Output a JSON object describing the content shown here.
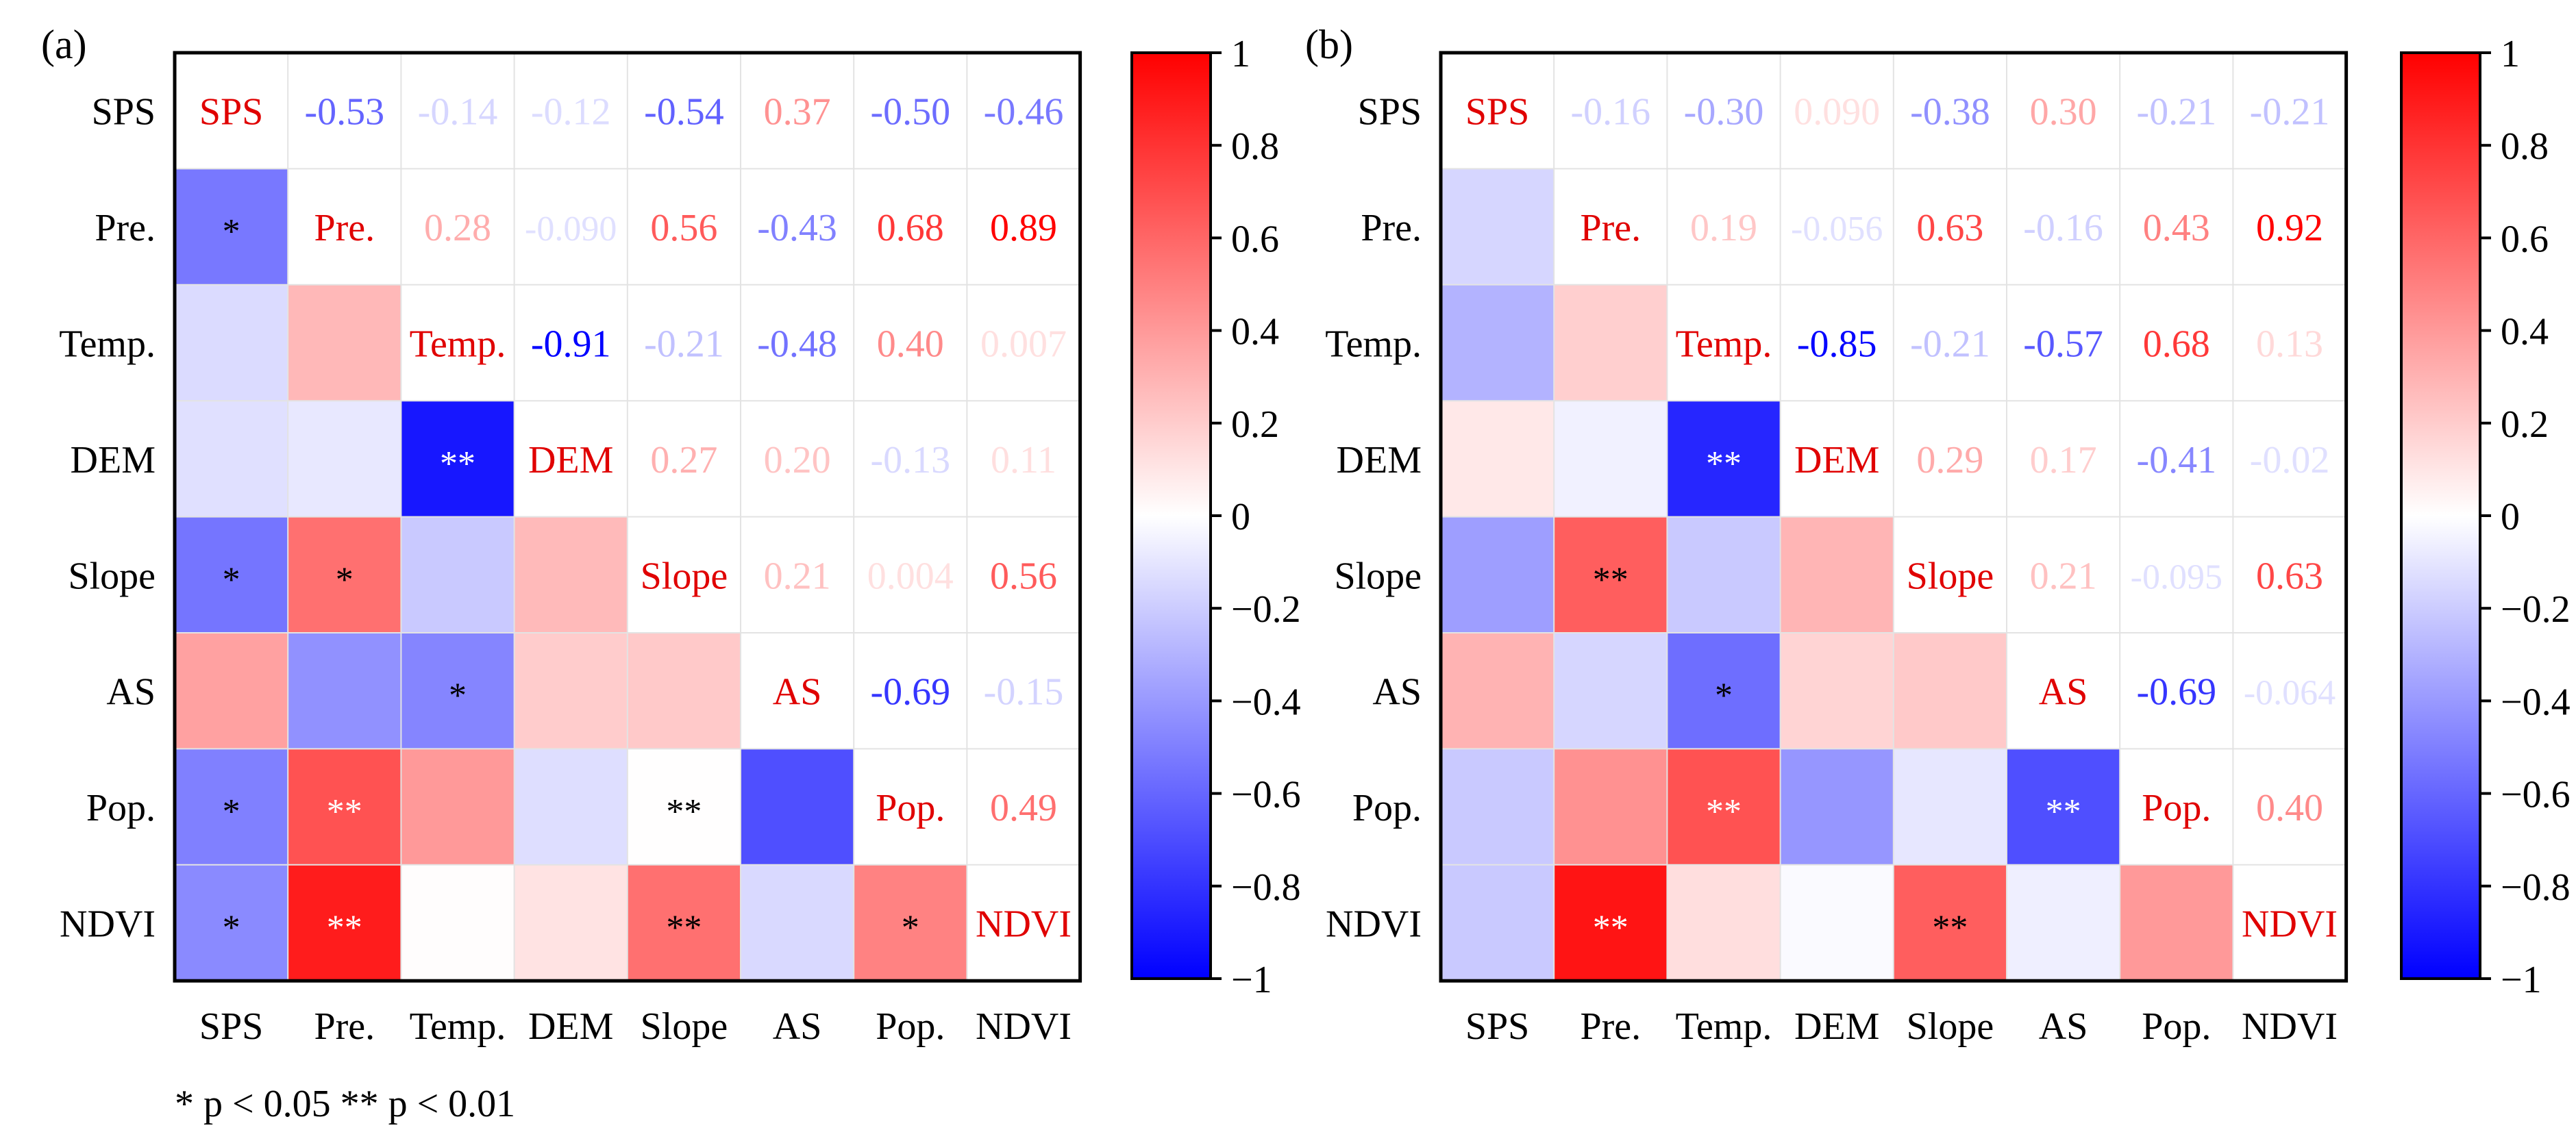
{
  "colors": {
    "negative": "#0000ff",
    "neutral": "#ffffff",
    "positive": "#ff0000",
    "self_label": "#e00000",
    "star_dark": "#000000",
    "star_light": "#ffffff"
  },
  "legend_note": "* p < 0.05   ** p < 0.01",
  "chart_data": [
    {
      "type": "heatmap",
      "panel_label": "(a)",
      "variables": [
        "SPS",
        "Pre.",
        "Temp.",
        "DEM",
        "Slope",
        "AS",
        "Pop.",
        "NDVI"
      ],
      "upper_labels": [
        [
          "SPS",
          "-0.53",
          "-0.14",
          "-0.12",
          "-0.54",
          "0.37",
          "-0.50",
          "-0.46"
        ],
        [
          "",
          "Pre.",
          "0.28",
          "-0.090",
          "0.56",
          "-0.43",
          "0.68",
          "0.89"
        ],
        [
          "",
          "",
          "Temp.",
          "-0.91",
          "-0.21",
          "-0.48",
          "0.40",
          "0.007"
        ],
        [
          "",
          "",
          "",
          "DEM",
          "0.27",
          "0.20",
          "-0.13",
          "0.11"
        ],
        [
          "",
          "",
          "",
          "",
          "Slope",
          "0.21",
          "0.004",
          "0.56"
        ],
        [
          "",
          "",
          "",
          "",
          "",
          "AS",
          "-0.69",
          "-0.15"
        ],
        [
          "",
          "",
          "",
          "",
          "",
          "",
          "Pop.",
          "0.49"
        ],
        [
          "",
          "",
          "",
          "",
          "",
          "",
          "",
          "NDVI"
        ]
      ],
      "significance": [
        [
          "",
          "",
          "",
          "",
          "",
          "",
          "",
          ""
        ],
        [
          "*",
          "",
          "",
          "",
          "",
          "",
          "",
          ""
        ],
        [
          "",
          "",
          "",
          "",
          "",
          "",
          "",
          ""
        ],
        [
          "",
          "",
          "**",
          "",
          "",
          "",
          "",
          ""
        ],
        [
          "*",
          "*",
          "",
          "",
          "",
          "",
          "",
          ""
        ],
        [
          "",
          "",
          "*",
          "",
          "",
          "",
          "",
          ""
        ],
        [
          "*",
          "**",
          "",
          "",
          "**",
          "",
          "",
          ""
        ],
        [
          "*",
          "**",
          "",
          "",
          "**",
          "",
          "*",
          ""
        ]
      ],
      "colorbar": {
        "min": -1,
        "max": 1,
        "ticks": [
          "1",
          "0.8",
          "0.6",
          "0.4",
          "0.2",
          "0",
          "−0.2",
          "−0.4",
          "−0.6",
          "−0.8",
          "−1"
        ]
      }
    },
    {
      "type": "heatmap",
      "panel_label": "(b)",
      "variables": [
        "SPS",
        "Pre.",
        "Temp.",
        "DEM",
        "Slope",
        "AS",
        "Pop.",
        "NDVI"
      ],
      "upper_labels": [
        [
          "SPS",
          "-0.16",
          "-0.30",
          "0.090",
          "-0.38",
          "0.30",
          "-0.21",
          "-0.21"
        ],
        [
          "",
          "Pre.",
          "0.19",
          "-0.056",
          "0.63",
          "-0.16",
          "0.43",
          "0.92"
        ],
        [
          "",
          "",
          "Temp.",
          "-0.85",
          "-0.21",
          "-0.57",
          "0.68",
          "0.13"
        ],
        [
          "",
          "",
          "",
          "DEM",
          "0.29",
          "0.17",
          "-0.41",
          "-0.02"
        ],
        [
          "",
          "",
          "",
          "",
          "Slope",
          "0.21",
          "-0.095",
          "0.63"
        ],
        [
          "",
          "",
          "",
          "",
          "",
          "AS",
          "-0.69",
          "-0.064"
        ],
        [
          "",
          "",
          "",
          "",
          "",
          "",
          "Pop.",
          "0.40"
        ],
        [
          "",
          "",
          "",
          "",
          "",
          "",
          "",
          "NDVI"
        ]
      ],
      "significance": [
        [
          "",
          "",
          "",
          "",
          "",
          "",
          "",
          ""
        ],
        [
          "",
          "",
          "",
          "",
          "",
          "",
          "",
          ""
        ],
        [
          "",
          "",
          "",
          "",
          "",
          "",
          "",
          ""
        ],
        [
          "",
          "",
          "**",
          "",
          "",
          "",
          "",
          ""
        ],
        [
          "",
          "**",
          "",
          "",
          "",
          "",
          "",
          ""
        ],
        [
          "",
          "",
          "*",
          "",
          "",
          "",
          "",
          ""
        ],
        [
          "",
          "",
          "**",
          "",
          "",
          "**",
          "",
          ""
        ],
        [
          "",
          "**",
          "",
          "",
          "**",
          "",
          "",
          ""
        ]
      ],
      "colorbar": {
        "min": -1,
        "max": 1,
        "ticks": [
          "1",
          "0.8",
          "0.6",
          "0.4",
          "0.2",
          "0",
          "−0.2",
          "−0.4",
          "−0.6",
          "−0.8",
          "−1"
        ]
      }
    }
  ]
}
